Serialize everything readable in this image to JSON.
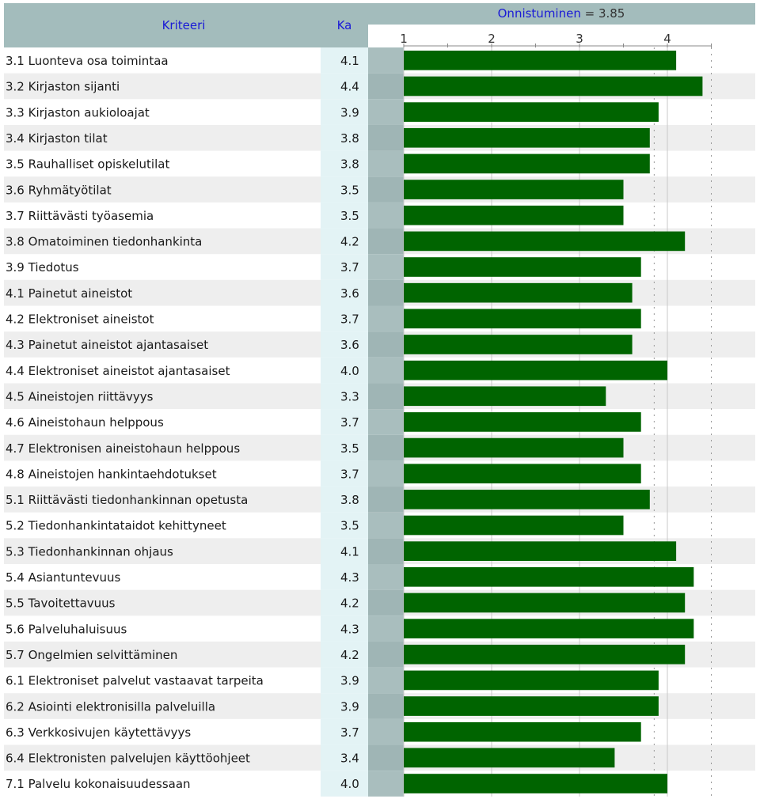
{
  "header": {
    "criteria_label": "Kriteeri",
    "mean_label": "Ka",
    "success_label": "Onnistuminen",
    "success_equals": " = ",
    "success_value": "3.85"
  },
  "colors": {
    "bar": "#006400",
    "header_bg": "#a3bcbc",
    "ka_column_bg": "#e3f3f5",
    "row_alt_bg": "#eeeeee",
    "left_strip_bg": "#a9bebe",
    "header_text": "#1a1ad6"
  },
  "chart_data": {
    "type": "bar",
    "orientation": "horizontal",
    "xlim": [
      1,
      4.5
    ],
    "x_ticks": [
      "1",
      "2",
      "3",
      "4"
    ],
    "reference_value": 3.85,
    "categories": [
      "3.1 Luonteva osa toimintaa",
      "3.2 Kirjaston sijanti",
      "3.3 Kirjaston aukioloajat",
      "3.4 Kirjaston tilat",
      "3.5 Rauhalliset opiskelutilat",
      "3.6 Ryhmätyötilat",
      "3.7 Riittävästi työasemia",
      "3.8 Omatoiminen tiedonhankinta",
      "3.9 Tiedotus",
      "4.1 Painetut aineistot",
      "4.2 Elektroniset aineistot",
      "4.3 Painetut aineistot ajantasaiset",
      "4.4 Elektroniset aineistot ajantasaiset",
      "4.5 Aineistojen riittävyys",
      "4.6 Aineistohaun helppous",
      "4.7 Elektronisen aineistohaun helppous",
      "4.8 Aineistojen hankintaehdotukset",
      "5.1 Riittävästi tiedonhankinnan opetusta",
      "5.2 Tiedonhankintataidot kehittyneet",
      "5.3 Tiedonhankinnan ohjaus",
      "5.4 Asiantuntevuus",
      "5.5 Tavoitettavuus",
      "5.6 Palveluhaluisuus",
      "5.7 Ongelmien selvittäminen",
      "6.1 Elektroniset palvelut vastaavat tarpeita",
      "6.2 Asiointi elektronisilla palveluilla",
      "6.3 Verkkosivujen käytettävyys",
      "6.4 Elektronisten palvelujen käyttöohjeet",
      "7.1 Palvelu kokonaisuudessaan"
    ],
    "values": [
      4.1,
      4.4,
      3.9,
      3.8,
      3.8,
      3.5,
      3.5,
      4.2,
      3.7,
      3.6,
      3.7,
      3.6,
      4.0,
      3.3,
      3.7,
      3.5,
      3.7,
      3.8,
      3.5,
      4.1,
      4.3,
      4.2,
      4.3,
      4.2,
      3.9,
      3.9,
      3.7,
      3.4,
      4.0
    ],
    "value_labels": [
      "4.1",
      "4.4",
      "3.9",
      "3.8",
      "3.8",
      "3.5",
      "3.5",
      "4.2",
      "3.7",
      "3.6",
      "3.7",
      "3.6",
      "4.0",
      "3.3",
      "3.7",
      "3.5",
      "3.7",
      "3.8",
      "3.5",
      "4.1",
      "4.3",
      "4.2",
      "4.3",
      "4.2",
      "3.9",
      "3.9",
      "3.7",
      "3.4",
      "4.0"
    ]
  }
}
